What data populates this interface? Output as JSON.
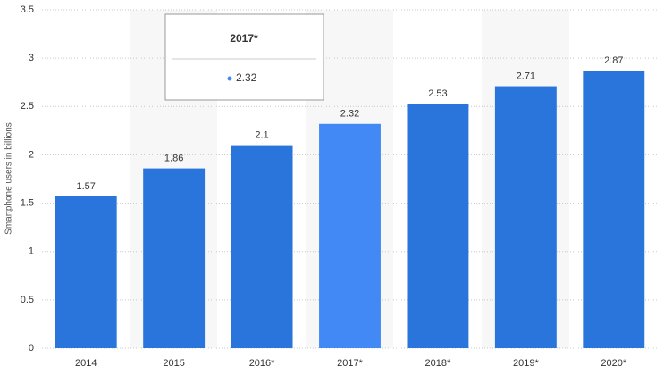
{
  "chart_data": {
    "type": "bar",
    "y_label": "Smartphone users in billions",
    "categories": [
      "2014",
      "2015",
      "2016*",
      "2017*",
      "2018*",
      "2019*",
      "2020*"
    ],
    "values": [
      1.57,
      1.86,
      2.1,
      2.32,
      2.53,
      2.71,
      2.87
    ],
    "color": "#2a75db",
    "highlight_color": "#4289f5",
    "highlight_index": 3,
    "ylim": [
      0,
      3.5
    ],
    "yticks": [
      0,
      0.5,
      1,
      1.5,
      2,
      2.5,
      3,
      3.5
    ],
    "grid": true
  }
}
